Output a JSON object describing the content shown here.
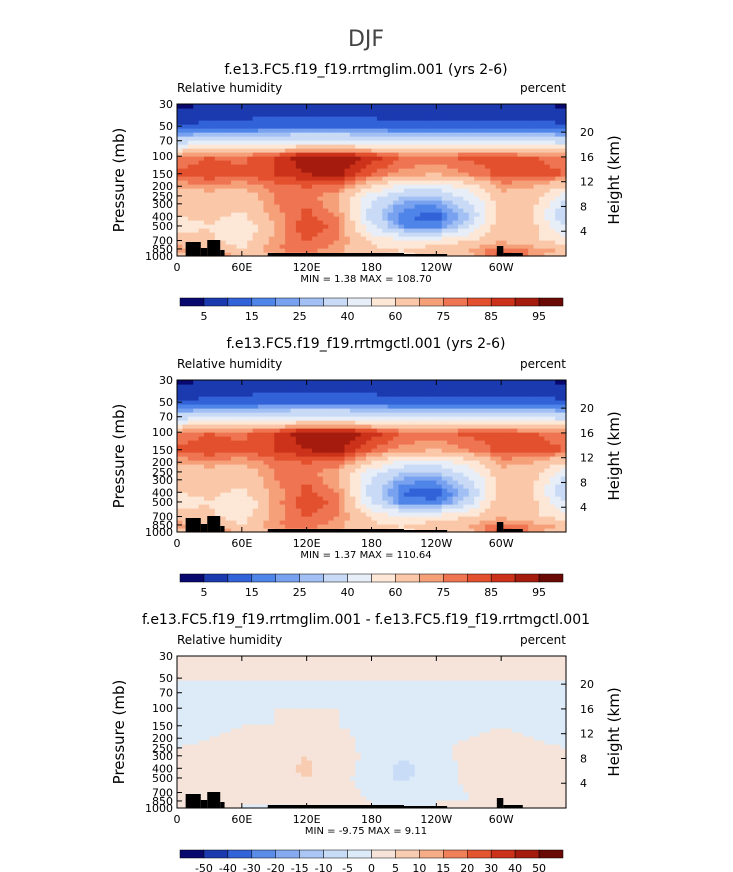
{
  "figure_title": "DJF",
  "colors": {
    "seq_scale": [
      "#08086e",
      "#1c3ab0",
      "#3262d8",
      "#4f84e8",
      "#78a2ef",
      "#a2c0f3",
      "#c8daf6",
      "#e8eef8",
      "#fde7d6",
      "#fac7a8",
      "#f6a07a",
      "#ef7552",
      "#e2502e",
      "#cc321a",
      "#a51c0e",
      "#6a0a04"
    ],
    "diff_scale": [
      "#08086e",
      "#1c3ab0",
      "#3262d8",
      "#5a8ce8",
      "#86aaf0",
      "#aac6f4",
      "#c8dcf8",
      "#ddeaf8",
      "#f6e4da",
      "#f8ccb0",
      "#f6ac86",
      "#ef8058",
      "#e2552e",
      "#cc321a",
      "#a51c0e",
      "#6a0a04"
    ],
    "terrain": "#000000"
  },
  "chart_data": [
    {
      "type": "heatmap",
      "title": "f.e13.FC5.f19_f19.rrtmglim.001 (yrs 2-6)",
      "left_label": "Relative humidity",
      "right_label": "percent",
      "ylabel": "Pressure (mb)",
      "y2label": "Height (km)",
      "x_ticks": [
        "0",
        "60E",
        "120E",
        "180",
        "120W",
        "60W"
      ],
      "y_ticks": [
        "30",
        "50",
        "70",
        "100",
        "150",
        "200",
        "250",
        "300",
        "400",
        "500",
        "700",
        "850",
        "1000"
      ],
      "y2_ticks": [
        "20",
        "16",
        "12",
        "8",
        "4"
      ],
      "stats": "MIN =    1.38   MAX =  108.70",
      "colorbar_labels": [
        "5",
        "15",
        "25",
        "40",
        "60",
        "75",
        "85",
        "95"
      ],
      "scale": "seq",
      "x": [
        0,
        30,
        60,
        90,
        120,
        150,
        180,
        210,
        240,
        270,
        300,
        330,
        360
      ],
      "y": [
        1000,
        850,
        700,
        500,
        400,
        300,
        250,
        200,
        150,
        100,
        70,
        50,
        30
      ],
      "z": [
        [
          60,
          75,
          72,
          68,
          72,
          70,
          62,
          58,
          62,
          68,
          85,
          72,
          60
        ],
        [
          72,
          70,
          60,
          75,
          78,
          72,
          62,
          60,
          65,
          70,
          78,
          75,
          68
        ],
        [
          68,
          62,
          55,
          72,
          80,
          75,
          58,
          52,
          55,
          60,
          70,
          62,
          55
        ],
        [
          55,
          60,
          50,
          70,
          85,
          78,
          42,
          20,
          18,
          38,
          70,
          62,
          40
        ],
        [
          60,
          62,
          58,
          72,
          82,
          74,
          35,
          15,
          12,
          30,
          65,
          60,
          30
        ],
        [
          62,
          65,
          62,
          75,
          80,
          70,
          38,
          22,
          20,
          38,
          62,
          62,
          35
        ],
        [
          65,
          68,
          65,
          75,
          78,
          70,
          45,
          30,
          28,
          45,
          68,
          65,
          45
        ],
        [
          70,
          72,
          70,
          78,
          80,
          78,
          60,
          45,
          42,
          55,
          72,
          70,
          60
        ],
        [
          82,
          85,
          82,
          85,
          90,
          92,
          80,
          72,
          70,
          75,
          82,
          82,
          80
        ],
        [
          75,
          80,
          78,
          85,
          95,
          95,
          88,
          80,
          78,
          82,
          82,
          80,
          78
        ],
        [
          35,
          40,
          38,
          42,
          45,
          45,
          42,
          40,
          38,
          40,
          40,
          38,
          36
        ],
        [
          10,
          12,
          12,
          14,
          14,
          14,
          13,
          12,
          12,
          12,
          12,
          12,
          11
        ],
        [
          4,
          5,
          5,
          6,
          6,
          6,
          5,
          5,
          5,
          5,
          5,
          5,
          4
        ]
      ]
    },
    {
      "type": "heatmap",
      "title": "f.e13.FC5.f19_f19.rrtmgctl.001 (yrs 2-6)",
      "left_label": "Relative humidity",
      "right_label": "percent",
      "ylabel": "Pressure (mb)",
      "y2label": "Height (km)",
      "x_ticks": [
        "0",
        "60E",
        "120E",
        "180",
        "120W",
        "60W"
      ],
      "y_ticks": [
        "30",
        "50",
        "70",
        "100",
        "150",
        "200",
        "250",
        "300",
        "400",
        "500",
        "700",
        "850",
        "1000"
      ],
      "y2_ticks": [
        "20",
        "16",
        "12",
        "8",
        "4"
      ],
      "stats": "MIN =    1.37   MAX =  110.64",
      "colorbar_labels": [
        "5",
        "15",
        "25",
        "40",
        "60",
        "75",
        "85",
        "95"
      ],
      "scale": "seq",
      "x": [
        0,
        30,
        60,
        90,
        120,
        150,
        180,
        210,
        240,
        270,
        300,
        330,
        360
      ],
      "y": [
        1000,
        850,
        700,
        500,
        400,
        300,
        250,
        200,
        150,
        100,
        70,
        50,
        30
      ],
      "z": [
        [
          60,
          75,
          72,
          68,
          72,
          70,
          62,
          58,
          62,
          68,
          85,
          72,
          60
        ],
        [
          72,
          70,
          60,
          75,
          78,
          72,
          62,
          60,
          65,
          70,
          78,
          75,
          68
        ],
        [
          68,
          62,
          55,
          72,
          80,
          75,
          58,
          52,
          55,
          60,
          70,
          62,
          55
        ],
        [
          55,
          60,
          50,
          72,
          85,
          78,
          40,
          18,
          16,
          36,
          70,
          62,
          38
        ],
        [
          60,
          62,
          58,
          72,
          82,
          74,
          35,
          14,
          12,
          28,
          65,
          60,
          30
        ],
        [
          62,
          65,
          62,
          75,
          80,
          70,
          38,
          22,
          20,
          38,
          62,
          62,
          35
        ],
        [
          65,
          68,
          65,
          75,
          78,
          70,
          45,
          30,
          28,
          45,
          68,
          65,
          45
        ],
        [
          70,
          72,
          70,
          78,
          80,
          78,
          60,
          45,
          42,
          55,
          72,
          70,
          60
        ],
        [
          82,
          85,
          82,
          85,
          90,
          92,
          80,
          72,
          70,
          75,
          82,
          82,
          80
        ],
        [
          75,
          80,
          78,
          85,
          95,
          95,
          88,
          80,
          78,
          82,
          82,
          80,
          78
        ],
        [
          35,
          40,
          38,
          42,
          45,
          45,
          42,
          40,
          38,
          40,
          40,
          38,
          36
        ],
        [
          10,
          12,
          12,
          14,
          14,
          14,
          13,
          12,
          12,
          12,
          12,
          12,
          11
        ],
        [
          4,
          5,
          5,
          6,
          6,
          6,
          5,
          5,
          5,
          5,
          5,
          5,
          4
        ]
      ]
    },
    {
      "type": "heatmap",
      "title": "f.e13.FC5.f19_f19.rrtmglim.001 - f.e13.FC5.f19_f19.rrtmgctl.001",
      "left_label": "Relative humidity",
      "right_label": "percent",
      "ylabel": "Pressure (mb)",
      "y2label": "Height (km)",
      "x_ticks": [
        "0",
        "60E",
        "120E",
        "180",
        "120W",
        "60W"
      ],
      "y_ticks": [
        "30",
        "50",
        "70",
        "100",
        "150",
        "200",
        "250",
        "300",
        "400",
        "500",
        "700",
        "850",
        "1000"
      ],
      "y2_ticks": [
        "20",
        "16",
        "12",
        "8",
        "4"
      ],
      "stats": "MIN =   -9.75   MAX =    9.11",
      "colorbar_labels": [
        "-50",
        "-40",
        "-30",
        "-20",
        "-15",
        "-10",
        "-5",
        "0",
        "5",
        "10",
        "15",
        "20",
        "30",
        "40",
        "50"
      ],
      "scale": "diff",
      "x": [
        0,
        30,
        60,
        90,
        120,
        150,
        180,
        210,
        240,
        270,
        300,
        330,
        360
      ],
      "y": [
        1000,
        850,
        700,
        500,
        400,
        300,
        250,
        200,
        150,
        100,
        70,
        50,
        30
      ],
      "z": [
        [
          0,
          0,
          0,
          -1,
          0,
          0,
          0,
          0,
          0,
          0,
          0,
          0,
          0
        ],
        [
          1,
          1,
          0,
          1,
          2,
          1,
          0,
          -1,
          0,
          0,
          1,
          1,
          0
        ],
        [
          1,
          2,
          1,
          2,
          4,
          2,
          -1,
          -2,
          -1,
          0,
          2,
          1,
          0
        ],
        [
          0,
          1,
          1,
          3,
          5,
          2,
          -3,
          -6,
          -2,
          1,
          3,
          1,
          0
        ],
        [
          0,
          1,
          2,
          4,
          6,
          2,
          -2,
          -7,
          -2,
          1,
          3,
          1,
          0
        ],
        [
          0,
          1,
          2,
          3,
          5,
          2,
          -1,
          -4,
          -1,
          1,
          2,
          1,
          0
        ],
        [
          0,
          1,
          1,
          2,
          3,
          1,
          -1,
          -2,
          -1,
          1,
          2,
          1,
          0
        ],
        [
          -1,
          0,
          1,
          1,
          2,
          1,
          -1,
          -2,
          -1,
          0,
          1,
          0,
          -1
        ],
        [
          -1,
          -1,
          0,
          0,
          1,
          0,
          -1,
          -1,
          -1,
          -1,
          0,
          -1,
          -1
        ],
        [
          -1,
          -1,
          -1,
          0,
          0,
          0,
          -1,
          -1,
          -1,
          -1,
          -1,
          -1,
          -1
        ],
        [
          -1,
          -1,
          -1,
          -1,
          -1,
          -1,
          -1,
          -1,
          -1,
          -1,
          -1,
          -1,
          -1
        ],
        [
          0,
          0,
          0,
          0,
          0,
          0,
          0,
          0,
          0,
          0,
          0,
          0,
          0
        ],
        [
          0,
          0,
          0,
          0,
          0,
          0,
          0,
          0,
          0,
          0,
          0,
          0,
          0
        ]
      ]
    }
  ]
}
